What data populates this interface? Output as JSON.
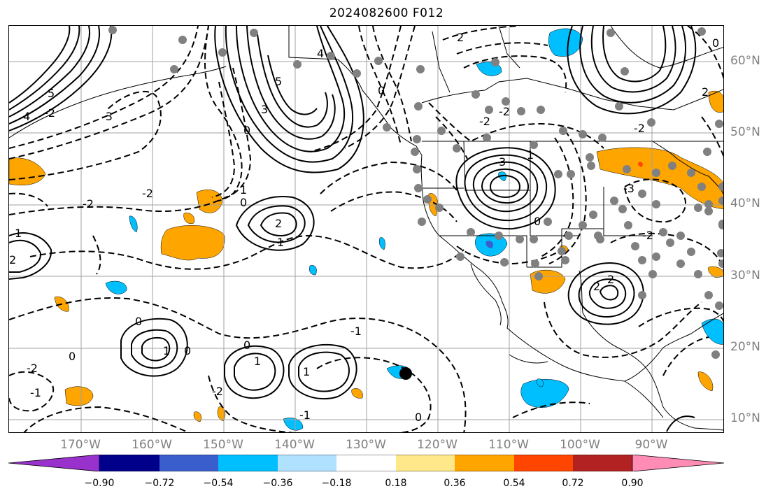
{
  "title": "2024082600 F012",
  "latitude_labels": [
    "60°N",
    "50°N",
    "40°N",
    "30°N",
    "20°N",
    "10°N"
  ],
  "longitude_labels": [
    "170°W",
    "160°W",
    "150°W",
    "140°W",
    "130°W",
    "120°W",
    "110°W",
    "100°W",
    "90°W"
  ],
  "contour_labels": [
    "5",
    "4",
    "3",
    "2",
    "1",
    "0",
    "-1",
    "-2",
    "-3",
    "-4"
  ],
  "colorbar": {
    "ticks": [
      "−0.90",
      "−0.72",
      "−0.54",
      "−0.36",
      "−0.18",
      "0.18",
      "0.36",
      "0.54",
      "0.72",
      "0.90"
    ],
    "colors": [
      "#9932cc",
      "#00008b",
      "#3a5fcd",
      "#00bfff",
      "#b0e2ff",
      "#ffffff",
      "#ffe88a",
      "#ffa500",
      "#ff4500",
      "#b22222",
      "#ff8cb4"
    ],
    "extend": "both"
  },
  "marker": {
    "color": "#000000",
    "label": "black-dot"
  }
}
